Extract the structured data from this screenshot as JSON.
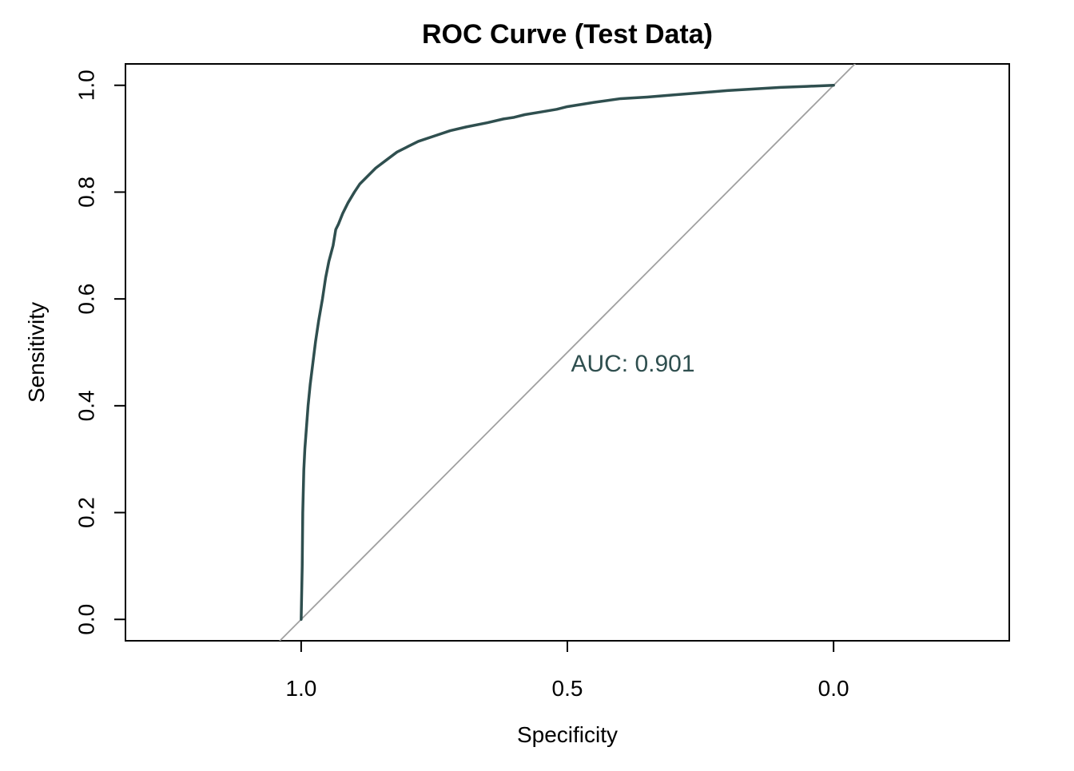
{
  "chart_data": {
    "type": "line",
    "title": "ROC Curve (Test Data)",
    "xlabel": "Specificity",
    "ylabel": "Sensitivity",
    "x_reversed": true,
    "xlim": [
      1.33,
      -0.33
    ],
    "ylim": [
      -0.04,
      1.04
    ],
    "xticks": [
      1.0,
      0.5,
      0.0
    ],
    "xtick_labels": [
      "1.0",
      "0.5",
      "0.0"
    ],
    "yticks": [
      0.0,
      0.2,
      0.4,
      0.6,
      0.8,
      1.0
    ],
    "ytick_labels": [
      "0.0",
      "0.2",
      "0.4",
      "0.6",
      "0.8",
      "1.0"
    ],
    "grid": false,
    "legend": "none",
    "annotation": "AUC: 0.901",
    "colors": {
      "curve": "#2f4f4f",
      "reference_line": "#a0a0a0",
      "annotation": "#2f4f4f",
      "axis": "#000000"
    },
    "series": [
      {
        "specificity": [
          1.0,
          0.998,
          0.997,
          0.995,
          0.993,
          0.99,
          0.987,
          0.983,
          0.978,
          0.973,
          0.967,
          0.96,
          0.954,
          0.948,
          0.94,
          0.935,
          0.93,
          0.922,
          0.912,
          0.9,
          0.89,
          0.875,
          0.86,
          0.84,
          0.82,
          0.8,
          0.78,
          0.75,
          0.72,
          0.69,
          0.65,
          0.62,
          0.6,
          0.58,
          0.55,
          0.52,
          0.5,
          0.45,
          0.4,
          0.35,
          0.3,
          0.25,
          0.2,
          0.15,
          0.1,
          0.05,
          0.0
        ],
        "sensitivity": [
          0.0,
          0.1,
          0.2,
          0.28,
          0.32,
          0.36,
          0.4,
          0.44,
          0.48,
          0.52,
          0.56,
          0.6,
          0.64,
          0.67,
          0.7,
          0.73,
          0.74,
          0.76,
          0.78,
          0.8,
          0.815,
          0.83,
          0.845,
          0.86,
          0.875,
          0.885,
          0.895,
          0.905,
          0.915,
          0.922,
          0.93,
          0.937,
          0.94,
          0.945,
          0.95,
          0.955,
          0.96,
          0.968,
          0.975,
          0.978,
          0.982,
          0.986,
          0.99,
          0.993,
          0.996,
          0.998,
          1.0
        ]
      }
    ],
    "reference_line": {
      "x": [
        1.0,
        0.0
      ],
      "y": [
        0.0,
        1.0
      ]
    }
  }
}
